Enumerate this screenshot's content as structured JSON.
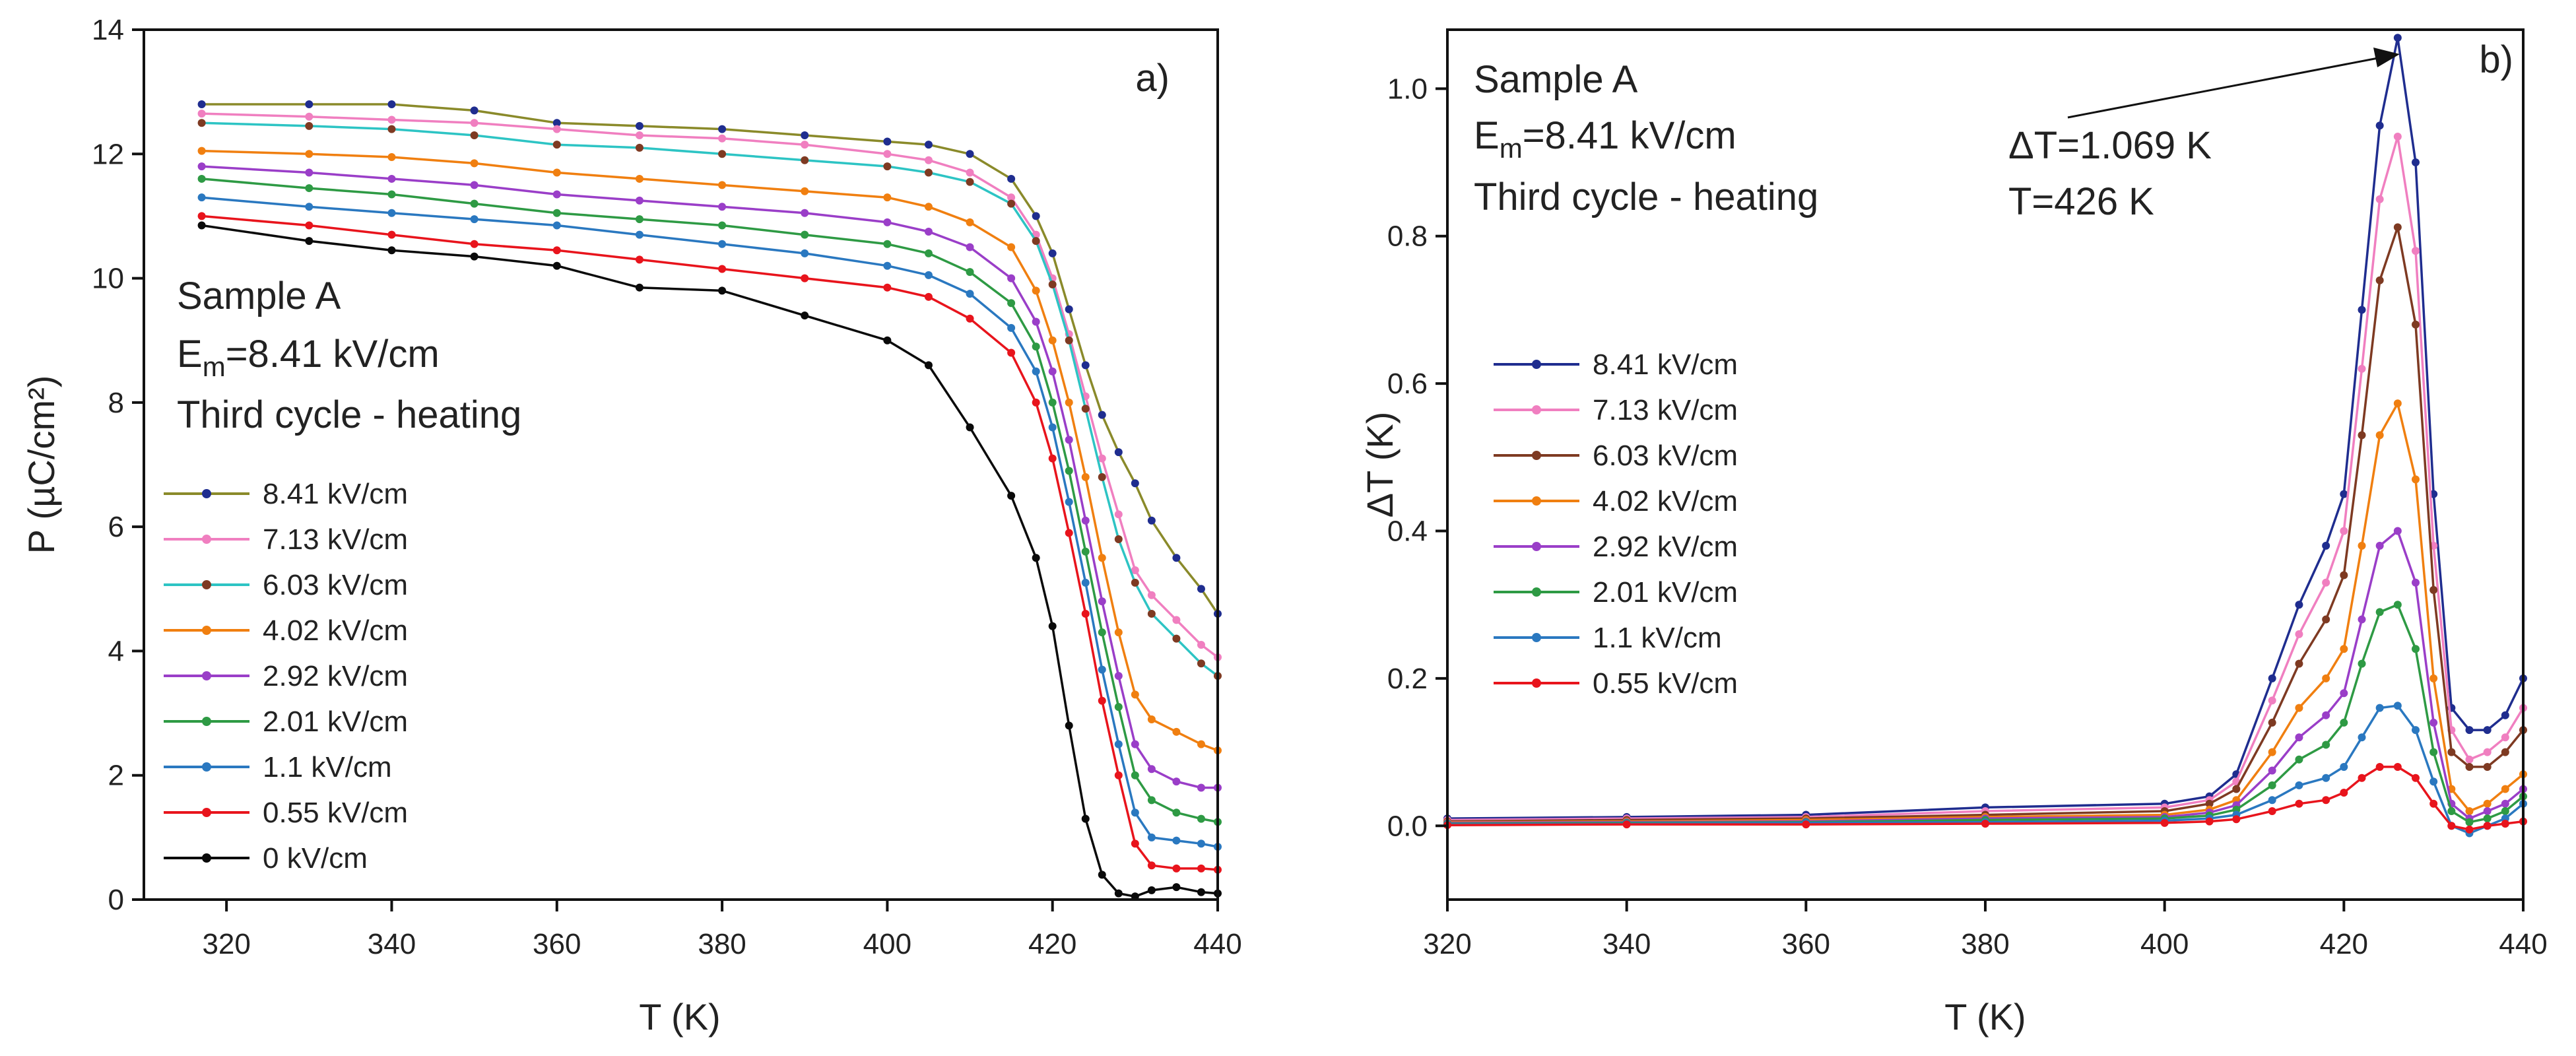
{
  "chart_data": [
    {
      "type": "line",
      "panel_label": "a)",
      "xlabel": "T (K)",
      "ylabel": "P (µC/cm²)",
      "xlim": [
        310,
        440
      ],
      "ylim": [
        0,
        14
      ],
      "xticks": [
        "320",
        "340",
        "360",
        "380",
        "400",
        "420",
        "440"
      ],
      "yticks": [
        "0",
        "2",
        "4",
        "6",
        "8",
        "10",
        "12",
        "14"
      ],
      "annotations": [
        "Sample A",
        "Em=8.41 kV/cm",
        "Third cycle - heating"
      ],
      "grid": false,
      "legend_position": "left-bottom",
      "x": [
        317,
        330,
        340,
        350,
        360,
        370,
        380,
        390,
        400,
        405,
        410,
        415,
        418,
        420,
        422,
        424,
        426,
        428,
        430,
        432,
        435,
        438,
        440
      ],
      "series": [
        {
          "name": "8.41 kV/cm",
          "color": "#1f2d8f",
          "line_color": "#8a8a2a",
          "values": [
            12.8,
            12.8,
            12.8,
            12.7,
            12.5,
            12.45,
            12.4,
            12.3,
            12.2,
            12.15,
            12.0,
            11.6,
            11.0,
            10.4,
            9.5,
            8.6,
            7.8,
            7.2,
            6.7,
            6.1,
            5.5,
            5.0,
            4.6
          ]
        },
        {
          "name": "7.13 kV/cm",
          "color": "#f07fc0",
          "values": [
            12.65,
            12.6,
            12.55,
            12.5,
            12.4,
            12.3,
            12.25,
            12.15,
            12.0,
            11.9,
            11.7,
            11.3,
            10.7,
            10.0,
            9.1,
            8.1,
            7.1,
            6.2,
            5.3,
            4.9,
            4.5,
            4.1,
            3.9
          ]
        },
        {
          "name": "6.03 kV/cm",
          "color": "#7e3a22",
          "line_color": "#2dc4c4",
          "values": [
            12.5,
            12.45,
            12.4,
            12.3,
            12.15,
            12.1,
            12.0,
            11.9,
            11.8,
            11.7,
            11.55,
            11.2,
            10.6,
            9.9,
            9.0,
            7.9,
            6.8,
            5.8,
            5.1,
            4.6,
            4.2,
            3.8,
            3.6
          ]
        },
        {
          "name": "4.02 kV/cm",
          "color": "#f07f10",
          "values": [
            12.05,
            12.0,
            11.95,
            11.85,
            11.7,
            11.6,
            11.5,
            11.4,
            11.3,
            11.15,
            10.9,
            10.5,
            9.8,
            9.0,
            8.0,
            6.8,
            5.5,
            4.3,
            3.3,
            2.9,
            2.7,
            2.5,
            2.4
          ]
        },
        {
          "name": "2.92 kV/cm",
          "color": "#9a3ec8",
          "values": [
            11.8,
            11.7,
            11.6,
            11.5,
            11.35,
            11.25,
            11.15,
            11.05,
            10.9,
            10.75,
            10.5,
            10.0,
            9.3,
            8.5,
            7.4,
            6.1,
            4.8,
            3.6,
            2.5,
            2.1,
            1.9,
            1.8,
            1.8
          ]
        },
        {
          "name": "2.01 kV/cm",
          "color": "#2e9a44",
          "values": [
            11.6,
            11.45,
            11.35,
            11.2,
            11.05,
            10.95,
            10.85,
            10.7,
            10.55,
            10.4,
            10.1,
            9.6,
            8.9,
            8.0,
            6.9,
            5.6,
            4.3,
            3.1,
            2.0,
            1.6,
            1.4,
            1.3,
            1.25
          ]
        },
        {
          "name": "1.1 kV/cm",
          "color": "#2a78c0",
          "values": [
            11.3,
            11.15,
            11.05,
            10.95,
            10.85,
            10.7,
            10.55,
            10.4,
            10.2,
            10.05,
            9.75,
            9.2,
            8.5,
            7.6,
            6.4,
            5.1,
            3.7,
            2.5,
            1.4,
            1.0,
            0.95,
            0.9,
            0.85
          ]
        },
        {
          "name": "0.55 kV/cm",
          "color": "#e8141c",
          "values": [
            11.0,
            10.85,
            10.7,
            10.55,
            10.45,
            10.3,
            10.15,
            10.0,
            9.85,
            9.7,
            9.35,
            8.8,
            8.0,
            7.1,
            5.9,
            4.6,
            3.2,
            2.0,
            0.9,
            0.55,
            0.5,
            0.5,
            0.48
          ]
        },
        {
          "name": "0 kV/cm",
          "color": "#0a0a0a",
          "values": [
            10.85,
            10.6,
            10.45,
            10.35,
            10.2,
            9.85,
            9.8,
            9.4,
            9.0,
            8.6,
            7.6,
            6.5,
            5.5,
            4.4,
            2.8,
            1.3,
            0.4,
            0.1,
            0.05,
            0.15,
            0.2,
            0.12,
            0.1
          ]
        }
      ]
    },
    {
      "type": "line",
      "panel_label": "b)",
      "xlabel": "T (K)",
      "ylabel": "ΔT (K)",
      "xlim": [
        320,
        440
      ],
      "ylim": [
        -0.1,
        1.08
      ],
      "xticks": [
        "320",
        "340",
        "360",
        "380",
        "400",
        "420",
        "440"
      ],
      "yticks": [
        "0.0",
        "0.2",
        "0.4",
        "0.6",
        "0.8",
        "1.0"
      ],
      "annotations": [
        "Sample A",
        "Em=8.41 kV/cm",
        "Third cycle - heating",
        "ΔT=1.069 K",
        "T=426 K"
      ],
      "grid": false,
      "legend_position": "left-middle",
      "x": [
        320,
        340,
        360,
        380,
        400,
        405,
        408,
        412,
        415,
        418,
        420,
        422,
        424,
        426,
        428,
        430,
        432,
        434,
        436,
        438,
        440
      ],
      "series": [
        {
          "name": "8.41 kV/cm",
          "color": "#1f2d8f",
          "values": [
            0.01,
            0.012,
            0.015,
            0.025,
            0.03,
            0.04,
            0.07,
            0.2,
            0.3,
            0.38,
            0.45,
            0.7,
            0.95,
            1.069,
            0.9,
            0.45,
            0.16,
            0.13,
            0.13,
            0.15,
            0.2
          ]
        },
        {
          "name": "7.13 kV/cm",
          "color": "#f07fc0",
          "values": [
            0.008,
            0.01,
            0.012,
            0.02,
            0.025,
            0.035,
            0.06,
            0.17,
            0.26,
            0.33,
            0.4,
            0.62,
            0.85,
            0.935,
            0.78,
            0.38,
            0.13,
            0.09,
            0.1,
            0.12,
            0.16
          ]
        },
        {
          "name": "6.03 kV/cm",
          "color": "#7e3a22",
          "values": [
            0.006,
            0.008,
            0.01,
            0.015,
            0.02,
            0.03,
            0.05,
            0.14,
            0.22,
            0.28,
            0.34,
            0.53,
            0.74,
            0.812,
            0.68,
            0.32,
            0.1,
            0.08,
            0.08,
            0.1,
            0.13
          ]
        },
        {
          "name": "4.02 kV/cm",
          "color": "#f07f10",
          "values": [
            0.005,
            0.006,
            0.008,
            0.012,
            0.015,
            0.022,
            0.035,
            0.1,
            0.16,
            0.2,
            0.24,
            0.38,
            0.53,
            0.573,
            0.47,
            0.2,
            0.05,
            0.02,
            0.03,
            0.05,
            0.07
          ]
        },
        {
          "name": "2.92 kV/cm",
          "color": "#9a3ec8",
          "values": [
            0.004,
            0.005,
            0.006,
            0.01,
            0.012,
            0.018,
            0.028,
            0.075,
            0.12,
            0.15,
            0.18,
            0.28,
            0.38,
            0.4,
            0.33,
            0.14,
            0.03,
            0.01,
            0.02,
            0.03,
            0.05
          ]
        },
        {
          "name": "2.01 kV/cm",
          "color": "#2e9a44",
          "values": [
            0.003,
            0.004,
            0.005,
            0.008,
            0.01,
            0.014,
            0.022,
            0.055,
            0.09,
            0.11,
            0.14,
            0.22,
            0.29,
            0.3,
            0.24,
            0.1,
            0.02,
            0.005,
            0.01,
            0.02,
            0.04
          ]
        },
        {
          "name": "1.1 kV/cm",
          "color": "#2a78c0",
          "values": [
            0.002,
            0.003,
            0.004,
            0.005,
            0.007,
            0.01,
            0.015,
            0.035,
            0.055,
            0.065,
            0.08,
            0.12,
            0.16,
            0.163,
            0.13,
            0.06,
            0.0,
            -0.01,
            0.0,
            0.01,
            0.03
          ]
        },
        {
          "name": "0.55 kV/cm",
          "color": "#e8141c",
          "values": [
            0.001,
            0.002,
            0.002,
            0.003,
            0.004,
            0.006,
            0.009,
            0.02,
            0.03,
            0.035,
            0.045,
            0.065,
            0.08,
            0.08,
            0.065,
            0.03,
            0.0,
            -0.005,
            0.0,
            0.003,
            0.006
          ]
        }
      ]
    }
  ]
}
